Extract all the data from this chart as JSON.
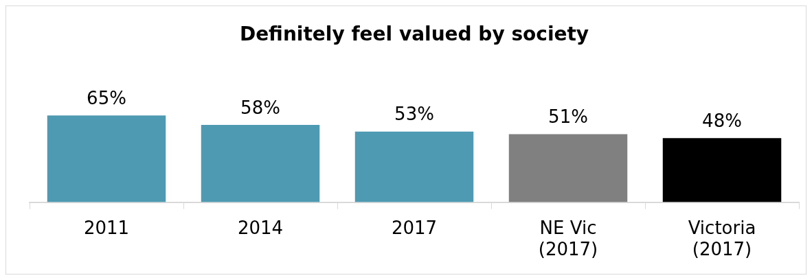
{
  "chart_data": {
    "type": "bar",
    "title": "Definitely feel valued by society",
    "categories": [
      "2011",
      "2014",
      "2017",
      "NE Vic (2017)",
      "Victoria (2017)"
    ],
    "values": [
      65,
      58,
      53,
      51,
      48
    ],
    "value_labels": [
      "65%",
      "58%",
      "53%",
      "51%",
      "48%"
    ],
    "colors": [
      "#4e9ab2",
      "#4e9ab2",
      "#4e9ab2",
      "#808080",
      "#000000"
    ],
    "grid": false,
    "legend": false
  }
}
